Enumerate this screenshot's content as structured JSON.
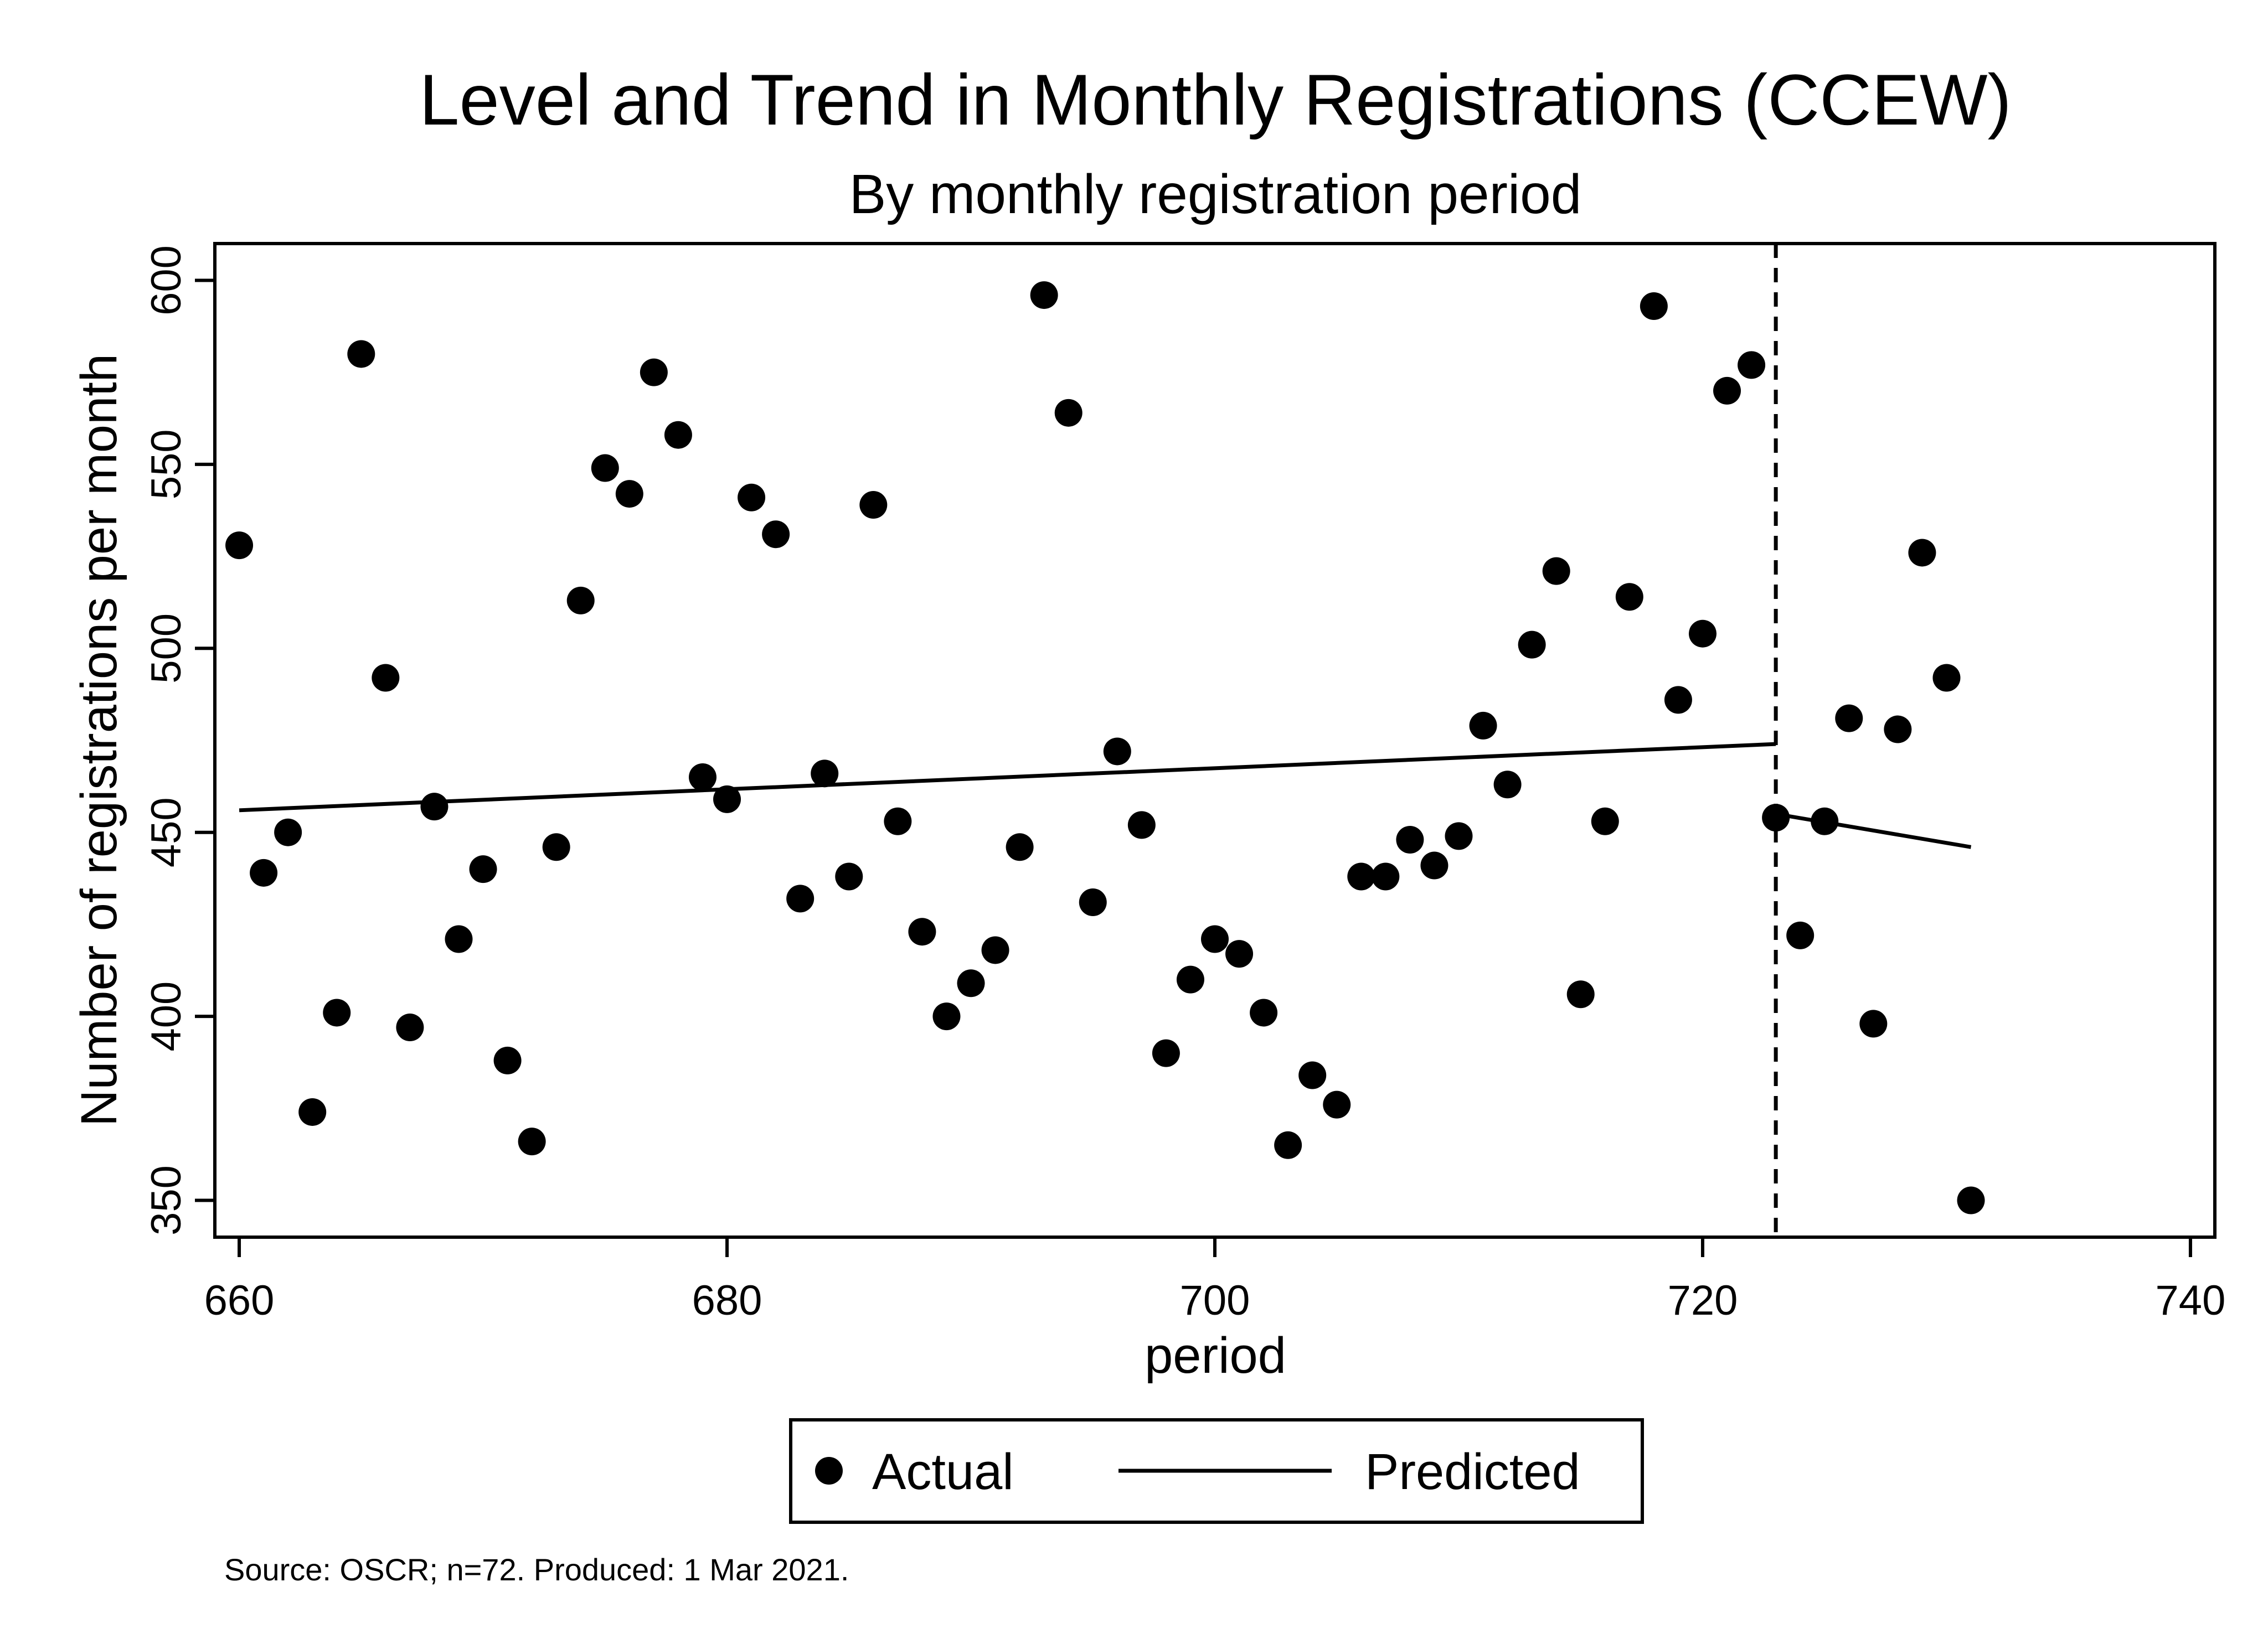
{
  "chart_data": {
    "type": "scatter",
    "title": "Level and Trend in Monthly Registrations (CCEW)",
    "subtitle": "By monthly registration period",
    "xlabel": "period",
    "ylabel": "Number of registrations per month",
    "xlim": [
      659,
      741
    ],
    "ylim": [
      340,
      610
    ],
    "xticks": [
      660,
      680,
      700,
      720,
      740
    ],
    "yticks": [
      350,
      400,
      450,
      500,
      550,
      600
    ],
    "grid": false,
    "legend_position": "bottom",
    "legend": [
      "Actual",
      "Predicted"
    ],
    "note": "Source: OSCR; n=72. Produced:  1 Mar 2021.",
    "break_x": 723,
    "series": [
      {
        "name": "Actual",
        "type": "scatter",
        "x": [
          660,
          661,
          662,
          663,
          664,
          665,
          666,
          667,
          668,
          669,
          670,
          671,
          672,
          673,
          674,
          675,
          676,
          677,
          678,
          679,
          680,
          681,
          682,
          683,
          684,
          685,
          686,
          687,
          688,
          689,
          690,
          691,
          692,
          693,
          694,
          695,
          696,
          697,
          698,
          699,
          700,
          701,
          702,
          703,
          704,
          705,
          706,
          707,
          708,
          709,
          710,
          711,
          712,
          713,
          714,
          715,
          716,
          717,
          718,
          719,
          720,
          721,
          722,
          723,
          724,
          725,
          726,
          727,
          728,
          729,
          730,
          731
        ],
        "y": [
          528,
          439,
          450,
          374,
          401,
          580,
          492,
          397,
          457,
          421,
          440,
          388,
          366,
          446,
          513,
          549,
          542,
          575,
          558,
          465,
          459,
          541,
          531,
          432,
          466,
          438,
          539,
          453,
          423,
          400,
          409,
          418,
          446,
          596,
          564,
          431,
          472,
          452,
          390,
          410,
          421,
          417,
          401,
          365,
          384,
          376,
          438,
          438,
          448,
          441,
          449,
          479,
          463,
          501,
          521,
          406,
          453,
          514,
          593,
          486,
          504,
          570,
          577,
          454,
          422,
          453,
          481,
          398,
          478,
          526,
          492,
          350
        ]
      },
      {
        "name": "Predicted",
        "type": "line",
        "segments": [
          {
            "x": [
              660,
              723
            ],
            "y": [
              456,
              474
            ]
          },
          {
            "x": [
              723,
              731
            ],
            "y": [
              455,
              446
            ]
          }
        ]
      }
    ]
  }
}
